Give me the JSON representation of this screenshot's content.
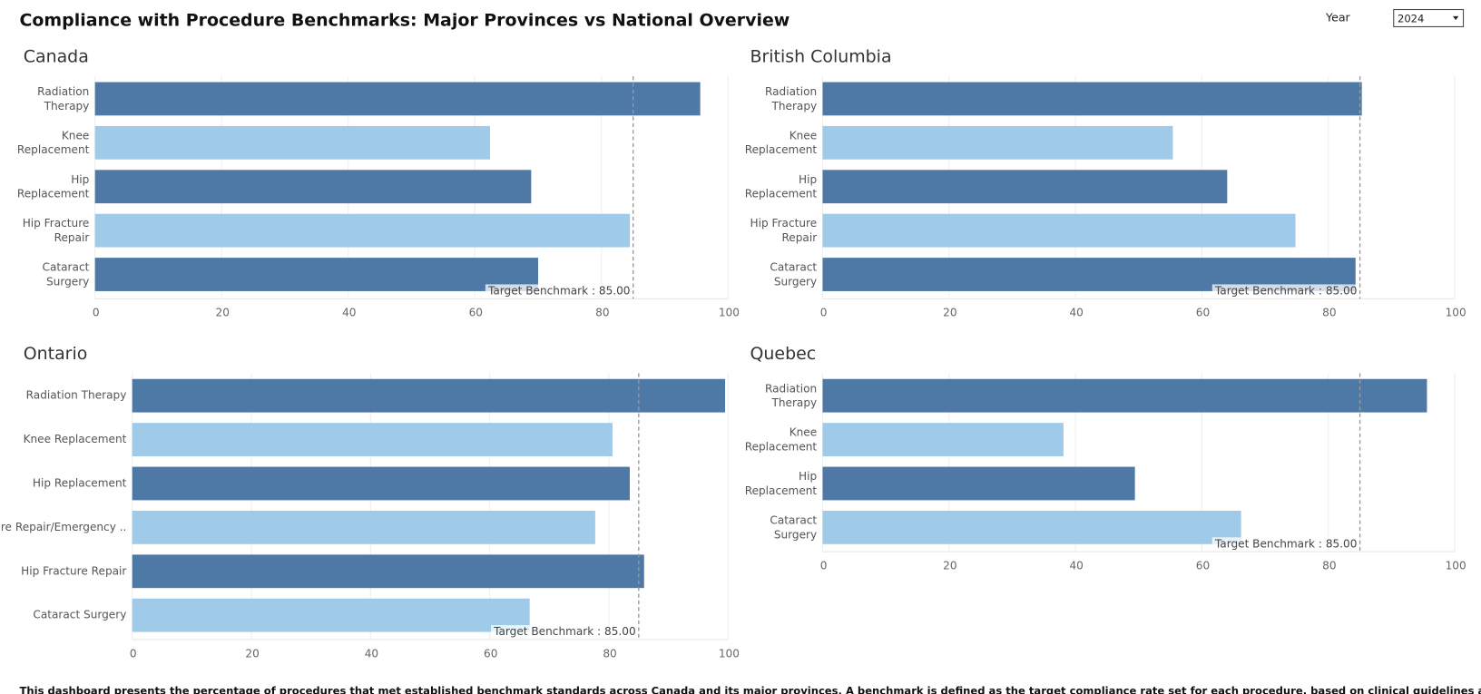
{
  "title": "Compliance with Procedure Benchmarks: Major Provinces vs National Overview",
  "filter": {
    "label": "Year",
    "value": "2024"
  },
  "footer": "This dashboard presents the percentage of procedures that met established benchmark standards across Canada and its major provinces. A benchmark is defined as the target compliance rate set for each procedure, based on clinical guidelines and performance expectations.",
  "chart_data": [
    {
      "type": "bar",
      "orientation": "horizontal",
      "title": "Canada",
      "categories": [
        "Radiation Therapy",
        "Knee Replacement",
        "Hip Replacement",
        "Hip Fracture Repair",
        "Cataract Surgery"
      ],
      "values": [
        95.6,
        62.4,
        68.9,
        84.5,
        70.0
      ],
      "colors": [
        "#4e79a7",
        "#a0cbe8",
        "#4e79a7",
        "#a0cbe8",
        "#4e79a7"
      ],
      "xlim": [
        0,
        100
      ],
      "xticks": [
        0,
        20,
        40,
        60,
        80,
        100
      ],
      "grid": true,
      "benchmark": {
        "value": 85,
        "label": "Target Benchmark : 85.00"
      }
    },
    {
      "type": "bar",
      "orientation": "horizontal",
      "title": "British Columbia",
      "categories": [
        "Radiation Therapy",
        "Knee Replacement",
        "Hip Replacement",
        "Hip Fracture Repair",
        "Cataract Surgery"
      ],
      "values": [
        85.3,
        55.4,
        64.0,
        74.8,
        84.3
      ],
      "colors": [
        "#4e79a7",
        "#a0cbe8",
        "#4e79a7",
        "#a0cbe8",
        "#4e79a7"
      ],
      "xlim": [
        0,
        100
      ],
      "xticks": [
        0,
        20,
        40,
        60,
        80,
        100
      ],
      "grid": true,
      "benchmark": {
        "value": 85,
        "label": "Target Benchmark : 85.00"
      }
    },
    {
      "type": "bar",
      "orientation": "horizontal",
      "title": "Ontario",
      "categories": [
        "Radiation Therapy",
        "Knee Replacement",
        "Hip Replacement",
        "Hip Fracture Repair/Emergency ..",
        "Hip Fracture Repair",
        "Cataract Surgery"
      ],
      "values": [
        99.5,
        80.6,
        83.5,
        77.7,
        85.9,
        66.7
      ],
      "colors": [
        "#4e79a7",
        "#a0cbe8",
        "#4e79a7",
        "#a0cbe8",
        "#4e79a7",
        "#a0cbe8"
      ],
      "xlim": [
        0,
        100
      ],
      "xticks": [
        0,
        20,
        40,
        60,
        80,
        100
      ],
      "grid": true,
      "benchmark": {
        "value": 85,
        "label": "Target Benchmark : 85.00"
      }
    },
    {
      "type": "bar",
      "orientation": "horizontal",
      "title": "Quebec",
      "categories": [
        "Radiation Therapy",
        "Knee Replacement",
        "Hip Replacement",
        "Cataract Surgery"
      ],
      "values": [
        95.6,
        38.1,
        49.4,
        66.2
      ],
      "colors": [
        "#4e79a7",
        "#a0cbe8",
        "#4e79a7",
        "#a0cbe8"
      ],
      "xlim": [
        0,
        100
      ],
      "xticks": [
        0,
        20,
        40,
        60,
        80,
        100
      ],
      "grid": true,
      "benchmark": {
        "value": 85,
        "label": "Target Benchmark : 85.00"
      }
    }
  ]
}
